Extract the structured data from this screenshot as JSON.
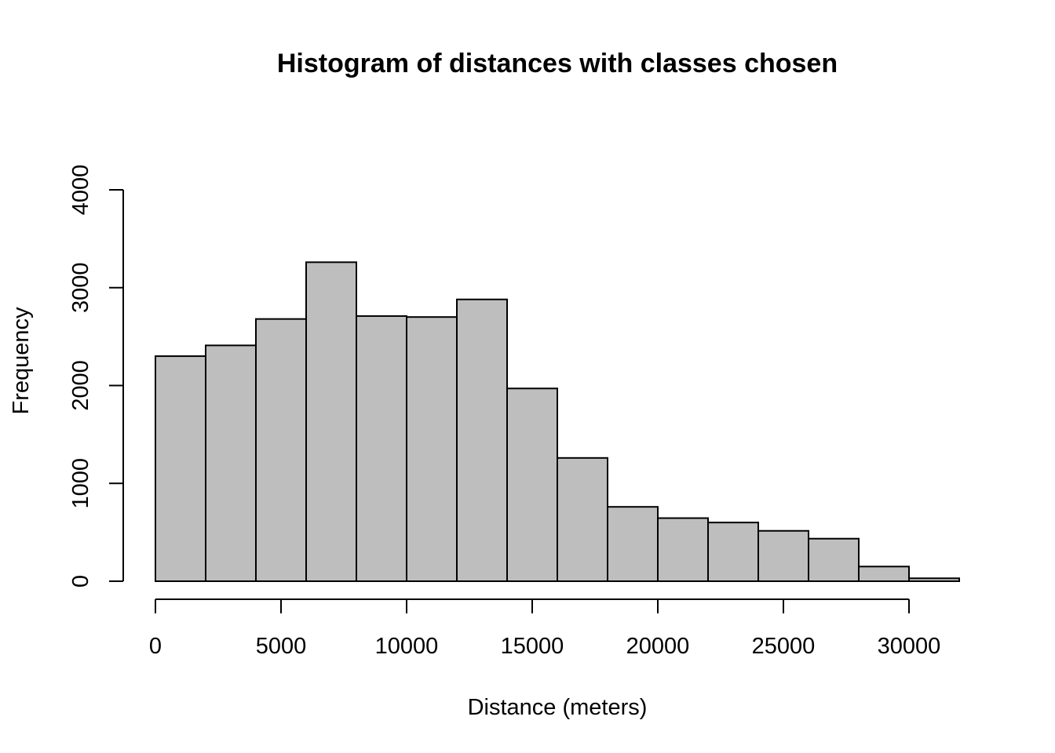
{
  "chart_data": {
    "type": "bar",
    "subtype": "histogram",
    "title": "Histogram of distances with classes chosen",
    "xlabel": "Distance (meters)",
    "ylabel": "Frequency",
    "xlim": [
      0,
      32000
    ],
    "ylim": [
      0,
      4000
    ],
    "bin_width": 2000,
    "bin_edges": [
      0,
      2000,
      4000,
      6000,
      8000,
      10000,
      12000,
      14000,
      16000,
      18000,
      20000,
      22000,
      24000,
      26000,
      28000,
      30000,
      32000
    ],
    "values": [
      2300,
      2410,
      2680,
      3260,
      2710,
      2700,
      2880,
      1970,
      1260,
      760,
      645,
      600,
      515,
      435,
      150,
      30
    ],
    "x_ticks": [
      0,
      5000,
      10000,
      15000,
      20000,
      25000,
      30000
    ],
    "x_tick_labels": [
      "0",
      "5000",
      "10000",
      "15000",
      "20000",
      "25000",
      "30000"
    ],
    "y_ticks": [
      0,
      1000,
      2000,
      3000,
      4000
    ],
    "y_tick_labels": [
      "0",
      "1000",
      "2000",
      "3000",
      "4000"
    ],
    "bar_color": "#bebebe",
    "edge_color": "#000000",
    "grid": false,
    "legend": "none"
  }
}
